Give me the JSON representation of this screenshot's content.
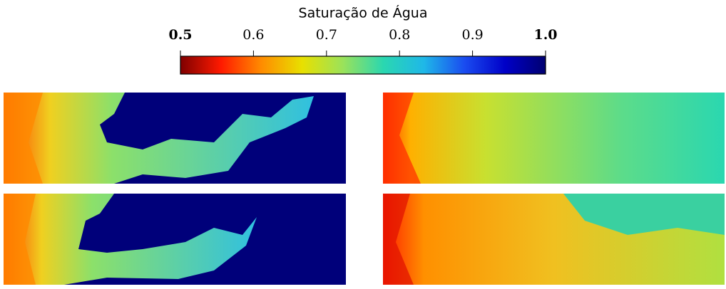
{
  "chart_data": {
    "type": "colorbar",
    "title": "Saturação de Água",
    "clim": [
      0.5,
      1.0
    ],
    "ticks": [
      {
        "value": 0.5,
        "label": "0.5"
      },
      0.6,
      0.7,
      0.8,
      0.9,
      {
        "value": 1.0,
        "label": "1.0"
      }
    ],
    "colormap": [
      "#7f0000",
      "#ff1a00",
      "#ff8c00",
      "#e8e000",
      "#9be25a",
      "#2ad7b0",
      "#1fb8e8",
      "#1a4cf0",
      "#0000c8",
      "#000070"
    ]
  }
}
